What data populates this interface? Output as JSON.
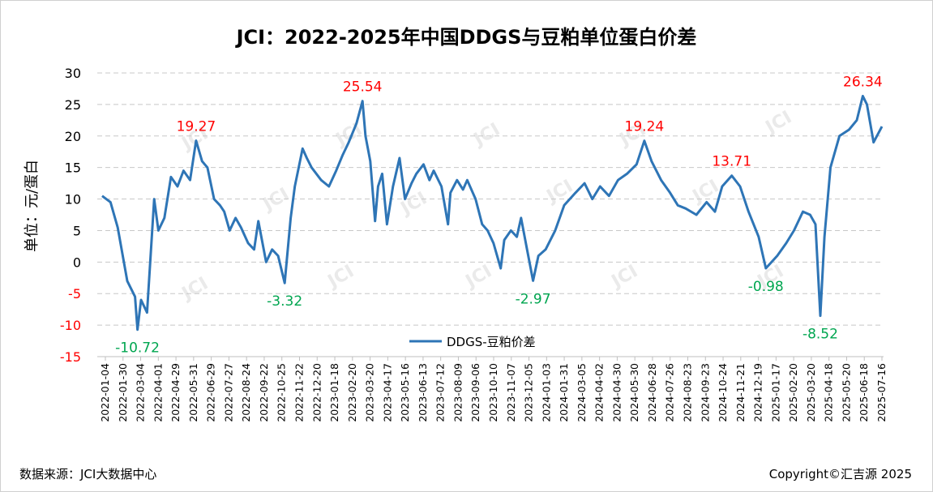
{
  "header": {
    "title": "JCI：2022-2025年中国DDGS与豆粕单位蛋白价差"
  },
  "footer": {
    "source": "数据来源：JCI大数据中心",
    "copyright": "Copyright©汇吉源 2025"
  },
  "watermark": {
    "text": "JCI"
  },
  "colors": {
    "line": "#2e75b6",
    "positive_label": "#ff0000",
    "negative_label": "#00a650",
    "negative_tick": "#ff0000"
  },
  "chart_data": {
    "type": "line",
    "title": "JCI：2022-2025年中国DDGS与豆粕单位蛋白价差",
    "ylabel": "单位：元/蛋白",
    "ylim": [
      -15,
      30
    ],
    "yticks": [
      30,
      25,
      20,
      15,
      10,
      5,
      0,
      -5,
      -10,
      -15
    ],
    "grid": "horizontal-dashed",
    "legend": "bottom-center",
    "x_tick_labels": [
      "2022-01-04",
      "2022-01-30",
      "2022-03-04",
      "2022-04-01",
      "2022-04-29",
      "2022-05-31",
      "2022-06-29",
      "2022-07-27",
      "2022-08-24",
      "2022-09-22",
      "2022-10-25",
      "2022-11-22",
      "2022-12-20",
      "2023-01-18",
      "2023-02-20",
      "2023-03-20",
      "2023-04-17",
      "2023-05-16",
      "2023-06-13",
      "2023-07-12",
      "2023-08-09",
      "2023-09-06",
      "2023-10-10",
      "2023-11-07",
      "2023-12-05",
      "2024-01-03",
      "2024-01-31",
      "2024-03-05",
      "2024-04-02",
      "2024-04-30",
      "2024-05-30",
      "2024-06-28",
      "2024-07-26",
      "2024-08-23",
      "2024-09-23",
      "2024-10-24",
      "2024-11-21",
      "2024-12-19",
      "2025-01-17",
      "2025-02-20",
      "2025-03-20",
      "2025-04-18",
      "2025-05-20",
      "2025-06-18",
      "2025-07-16"
    ],
    "series": [
      {
        "name": "DDGS-豆粕价差",
        "x": [
          "2022-01-04",
          "2022-01-18",
          "2022-01-30",
          "2022-02-15",
          "2022-02-28",
          "2022-03-04",
          "2022-03-10",
          "2022-03-20",
          "2022-04-01",
          "2022-04-08",
          "2022-04-18",
          "2022-04-29",
          "2022-05-10",
          "2022-05-20",
          "2022-05-31",
          "2022-06-10",
          "2022-06-20",
          "2022-06-29",
          "2022-07-10",
          "2022-07-20",
          "2022-07-27",
          "2022-08-05",
          "2022-08-15",
          "2022-08-24",
          "2022-09-05",
          "2022-09-15",
          "2022-09-22",
          "2022-10-05",
          "2022-10-15",
          "2022-10-25",
          "2022-11-05",
          "2022-11-15",
          "2022-11-22",
          "2022-12-05",
          "2022-12-12",
          "2022-12-20",
          "2023-01-05",
          "2023-01-18",
          "2023-01-30",
          "2023-02-10",
          "2023-02-20",
          "2023-03-05",
          "2023-03-15",
          "2023-03-20",
          "2023-03-28",
          "2023-04-05",
          "2023-04-10",
          "2023-04-17",
          "2023-04-25",
          "2023-05-05",
          "2023-05-16",
          "2023-05-25",
          "2023-06-05",
          "2023-06-13",
          "2023-06-25",
          "2023-07-05",
          "2023-07-12",
          "2023-07-25",
          "2023-08-05",
          "2023-08-09",
          "2023-08-20",
          "2023-08-30",
          "2023-09-06",
          "2023-09-20",
          "2023-10-01",
          "2023-10-10",
          "2023-10-20",
          "2023-11-01",
          "2023-11-07",
          "2023-11-18",
          "2023-11-28",
          "2023-12-05",
          "2023-12-15",
          "2023-12-25",
          "2024-01-03",
          "2024-01-15",
          "2024-01-31",
          "2024-02-15",
          "2024-03-05",
          "2024-03-20",
          "2024-04-02",
          "2024-04-15",
          "2024-04-30",
          "2024-05-15",
          "2024-05-30",
          "2024-06-15",
          "2024-06-28",
          "2024-07-10",
          "2024-07-26",
          "2024-08-10",
          "2024-08-23",
          "2024-09-05",
          "2024-09-23",
          "2024-10-10",
          "2024-10-24",
          "2024-11-05",
          "2024-11-21",
          "2024-12-05",
          "2024-12-19",
          "2025-01-05",
          "2025-01-17",
          "2025-02-05",
          "2025-02-20",
          "2025-03-05",
          "2025-03-20",
          "2025-04-01",
          "2025-04-10",
          "2025-04-18",
          "2025-04-25",
          "2025-05-05",
          "2025-05-20",
          "2025-06-05",
          "2025-06-18",
          "2025-06-28",
          "2025-07-05",
          "2025-07-16",
          "2025-07-30"
        ],
        "values": [
          10.5,
          9.5,
          5.5,
          -3.0,
          -5.5,
          -10.72,
          -6.0,
          -8.0,
          10.0,
          5.0,
          7.0,
          13.5,
          12.0,
          14.5,
          13.0,
          19.27,
          16.0,
          15.0,
          10.0,
          9.0,
          8.0,
          5.0,
          7.0,
          5.5,
          3.0,
          2.0,
          6.5,
          0.0,
          2.0,
          1.0,
          -3.32,
          7.0,
          12.0,
          18.0,
          16.5,
          15.0,
          13.0,
          12.0,
          14.5,
          17.0,
          19.0,
          22.0,
          25.54,
          20.0,
          16.0,
          6.5,
          12.0,
          14.0,
          6.0,
          12.0,
          16.5,
          10.0,
          12.5,
          14.0,
          15.5,
          13.0,
          14.5,
          12.0,
          6.0,
          11.0,
          13.0,
          11.5,
          13.0,
          10.0,
          6.0,
          5.0,
          3.0,
          -1.0,
          3.5,
          5.0,
          4.0,
          7.0,
          2.0,
          -2.97,
          1.0,
          2.0,
          5.0,
          9.0,
          11.0,
          12.5,
          10.0,
          12.0,
          10.5,
          13.0,
          14.0,
          15.5,
          19.24,
          16.0,
          13.0,
          11.0,
          9.0,
          8.5,
          7.5,
          9.5,
          8.0,
          12.0,
          13.71,
          12.0,
          8.0,
          4.0,
          -0.98,
          1.0,
          3.0,
          5.0,
          8.0,
          7.5,
          6.0,
          -8.52,
          4.0,
          15.0,
          20.0,
          21.0,
          22.5,
          26.34,
          25.0,
          19.0,
          21.5
        ]
      }
    ],
    "annotations": [
      {
        "text": "19.27",
        "x": "2022-06-10",
        "y": 19.27,
        "color": "red"
      },
      {
        "text": "25.54",
        "x": "2023-03-15",
        "y": 25.54,
        "color": "red"
      },
      {
        "text": "19.24",
        "x": "2024-06-28",
        "y": 19.24,
        "color": "red"
      },
      {
        "text": "13.71",
        "x": "2024-11-21",
        "y": 13.71,
        "color": "red"
      },
      {
        "text": "26.34",
        "x": "2025-06-28",
        "y": 26.34,
        "color": "red"
      },
      {
        "text": "-10.72",
        "x": "2022-03-04",
        "y": -10.72,
        "color": "green"
      },
      {
        "text": "-3.32",
        "x": "2022-11-05",
        "y": -3.32,
        "color": "green"
      },
      {
        "text": "-2.97",
        "x": "2023-12-25",
        "y": -2.97,
        "color": "green"
      },
      {
        "text": "-0.98",
        "x": "2025-01-17",
        "y": -0.98,
        "color": "green"
      },
      {
        "text": "-8.52",
        "x": "2025-04-18",
        "y": -8.52,
        "color": "green"
      }
    ]
  }
}
